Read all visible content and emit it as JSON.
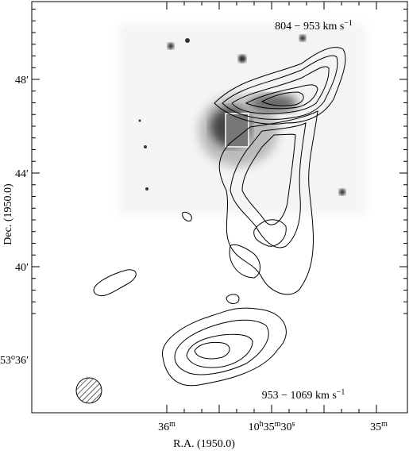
{
  "figure": {
    "x_label": "R.A. (1950.0)",
    "y_label": "Dec. (1950.0)",
    "x_ticks": [
      [
        {
          "text": "36"
        },
        {
          "text": "m",
          "sup": true
        }
      ],
      [
        {
          "text": "10"
        },
        {
          "text": "h",
          "sup": true
        },
        {
          "text": "35"
        },
        {
          "text": "m",
          "sup": true
        },
        {
          "text": "30"
        },
        {
          "text": "s",
          "sup": true
        }
      ],
      [
        {
          "text": "35"
        },
        {
          "text": "m",
          "sup": true
        }
      ]
    ],
    "y_ticks": [
      [
        {
          "text": "48′"
        }
      ],
      [
        {
          "text": "44′"
        }
      ],
      [
        {
          "text": "40′"
        }
      ],
      [
        {
          "text": "53"
        },
        {
          "text": "o",
          "sup": true
        },
        {
          "text": "36′"
        }
      ]
    ],
    "annotations": [
      [
        {
          "text": "804 − 953 km s"
        },
        {
          "text": "−1",
          "sup": true
        }
      ],
      [
        {
          "text": "953 − 1069 km s"
        },
        {
          "text": "−1",
          "sup": true
        }
      ]
    ]
  }
}
